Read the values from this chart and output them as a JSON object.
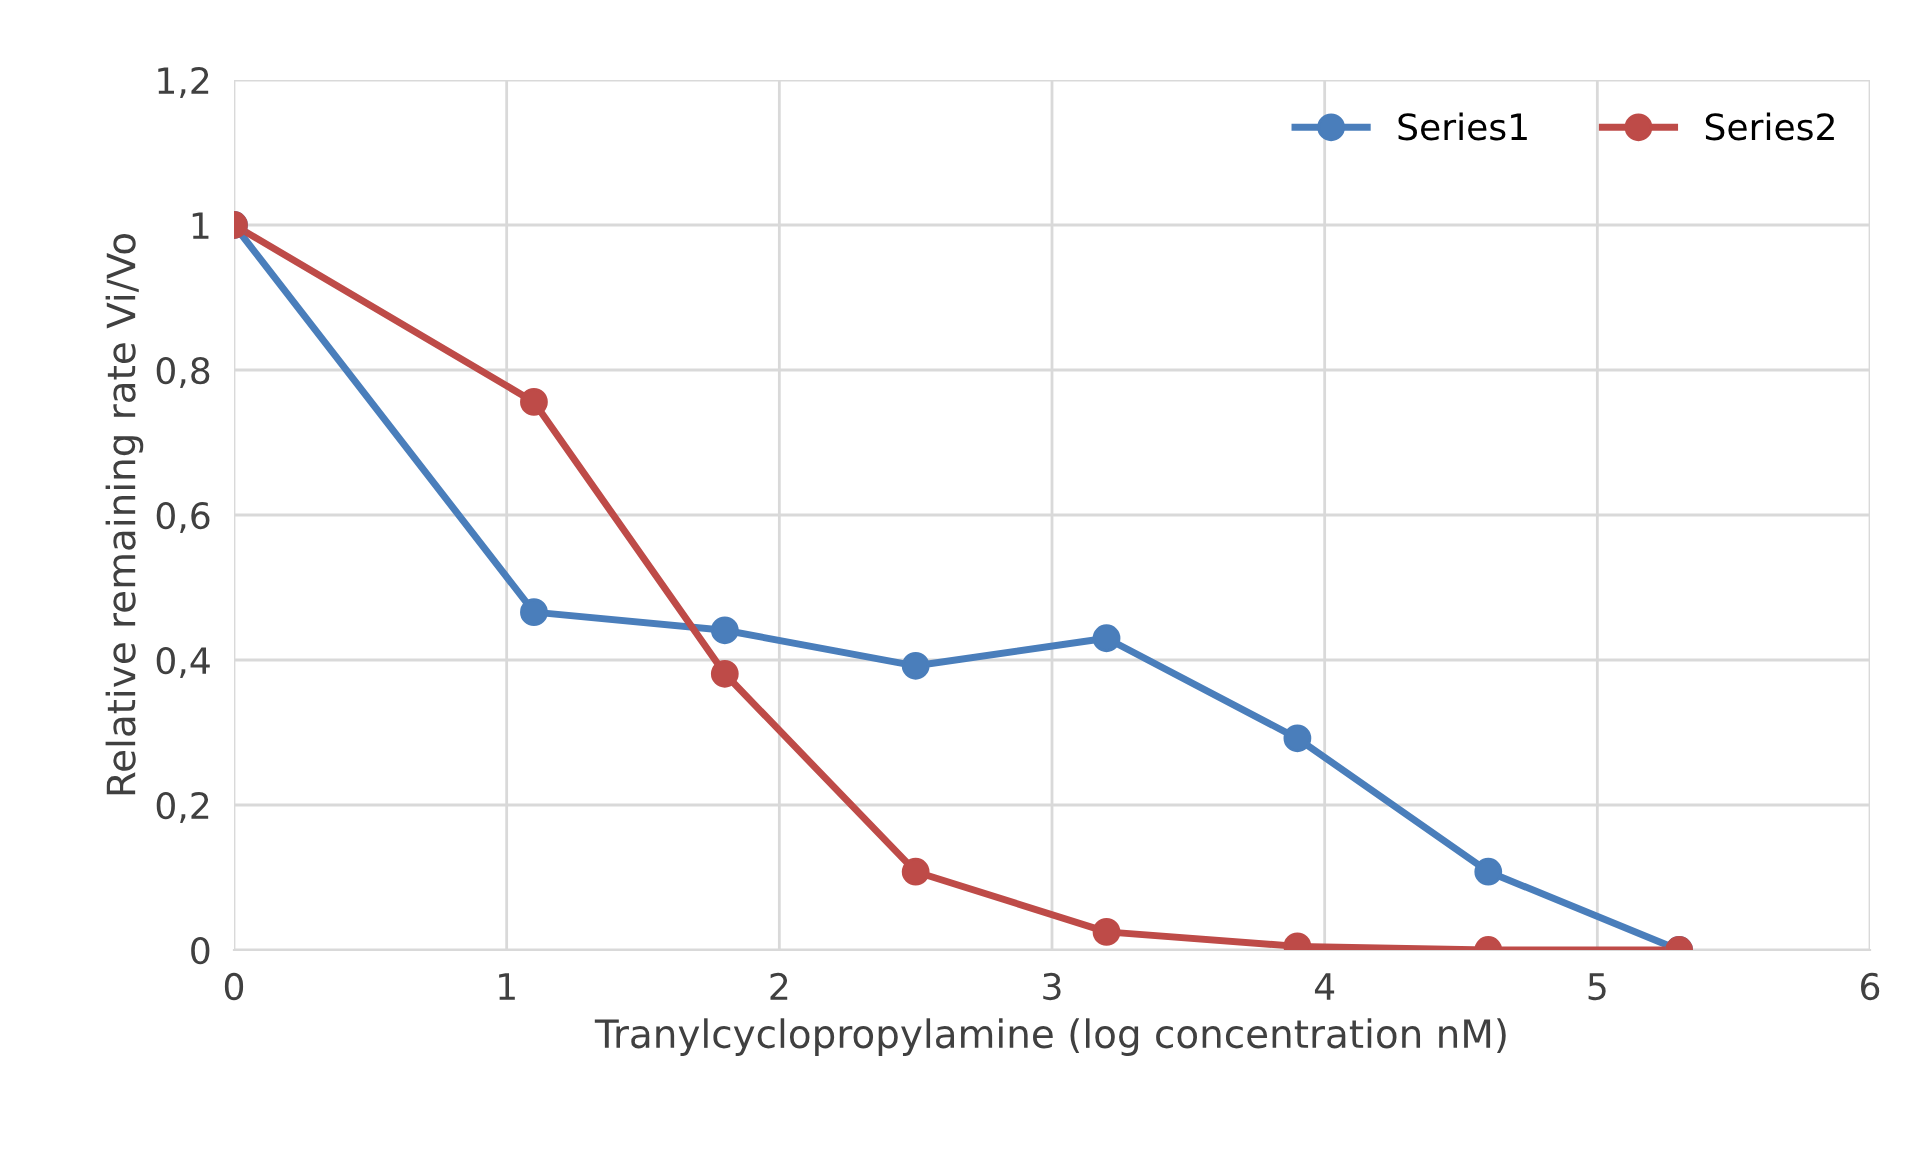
{
  "chart_data": {
    "type": "line",
    "xlabel": "Tranylcyclopropylamine (log concentration nM)",
    "ylabel": "Relative remaining rate Vi/Vo",
    "series": [
      {
        "name": "Series1",
        "color": "#4a7ebb",
        "x": [
          0,
          1.1,
          1.8,
          2.5,
          3.2,
          3.9,
          4.6,
          5.3
        ],
        "values": [
          1,
          0.466,
          0.441,
          0.392,
          0.43,
          0.292,
          0.108,
          0
        ]
      },
      {
        "name": "Series2",
        "color": "#be4b48",
        "x": [
          0,
          1.1,
          1.8,
          2.5,
          3.2,
          3.9,
          4.6,
          5.3
        ],
        "values": [
          1,
          0.756,
          0.381,
          0.108,
          0.025,
          0.005,
          0,
          0
        ]
      }
    ],
    "xlim": [
      0,
      6
    ],
    "xticks": [
      0,
      1,
      2,
      3,
      4,
      5,
      6
    ],
    "ylim": [
      0,
      1.2
    ],
    "yticks": [
      {
        "value": 0,
        "label": "0"
      },
      {
        "value": 0.2,
        "label": "0,2"
      },
      {
        "value": 0.4,
        "label": "0,4"
      },
      {
        "value": 0.6,
        "label": "0,6"
      },
      {
        "value": 0.8,
        "label": "0,8"
      },
      {
        "value": 1,
        "label": "1"
      },
      {
        "value": 1.2,
        "label": "1,2"
      }
    ],
    "grid": true,
    "legend": "top right",
    "marker": "circle",
    "line_style": "solid"
  }
}
